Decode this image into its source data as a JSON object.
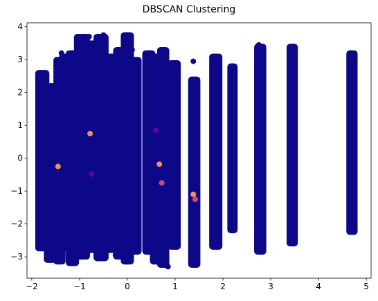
{
  "chart_data": {
    "type": "scatter",
    "title": "DBSCAN Clustering",
    "xlabel": "",
    "ylabel": "",
    "xlim": [
      -2.1,
      5.1
    ],
    "ylim": [
      -3.65,
      4.12
    ],
    "x_ticks": [
      -2,
      -1,
      0,
      1,
      2,
      3,
      4,
      5
    ],
    "y_ticks": [
      -3,
      -2,
      -1,
      0,
      1,
      2,
      3,
      4
    ],
    "grid": false,
    "legend": "none",
    "colors": {
      "main_cluster": "#0d0887",
      "noise_orange": "#f0905a",
      "noise_magenta": "#cc4778",
      "noise_purple": "#5b02a3"
    },
    "columns": [
      {
        "x": -1.78,
        "ymin": -2.75,
        "ymax": 2.6,
        "width": 0.18
      },
      {
        "x": -1.58,
        "ymin": -3.1,
        "ymax": 2.2,
        "width": 0.22
      },
      {
        "x": -1.42,
        "ymin": -3.15,
        "ymax": 3.0,
        "width": 0.14
      },
      {
        "x": -1.3,
        "ymin": -2.75,
        "ymax": 3.1,
        "width": 0.14
      },
      {
        "x": -1.15,
        "ymin": -3.2,
        "ymax": 3.2,
        "width": 0.16
      },
      {
        "x": -0.95,
        "ymin": -3.0,
        "ymax": 3.7,
        "width": 0.22
      },
      {
        "x": -0.75,
        "ymin": -2.8,
        "ymax": 3.5,
        "width": 0.2
      },
      {
        "x": -0.55,
        "ymin": -3.05,
        "ymax": 3.7,
        "width": 0.2
      },
      {
        "x": -0.35,
        "ymin": -2.8,
        "ymax": 3.1,
        "width": 0.18
      },
      {
        "x": -0.15,
        "ymin": -3.0,
        "ymax": 3.3,
        "width": 0.18
      },
      {
        "x": 0.0,
        "ymin": -3.15,
        "ymax": 3.75,
        "width": 0.16
      },
      {
        "x": 0.18,
        "ymin": -2.85,
        "ymax": 3.0,
        "width": 0.12
      },
      {
        "x": 0.45,
        "ymin": -2.85,
        "ymax": 3.2,
        "width": 0.16
      },
      {
        "x": 0.6,
        "ymin": -3.15,
        "ymax": 3.1,
        "width": 0.14
      },
      {
        "x": 0.75,
        "ymin": -3.25,
        "ymax": 3.3,
        "width": 0.14
      },
      {
        "x": 0.98,
        "ymin": -2.7,
        "ymax": 2.9,
        "width": 0.16
      },
      {
        "x": 1.4,
        "ymin": -3.25,
        "ymax": 2.4,
        "width": 0.14
      },
      {
        "x": 1.85,
        "ymin": -2.7,
        "ymax": 3.1,
        "width": 0.16
      },
      {
        "x": 2.2,
        "ymin": -2.2,
        "ymax": 2.8,
        "width": 0.1
      },
      {
        "x": 2.78,
        "ymin": -2.85,
        "ymax": 3.4,
        "width": 0.14
      },
      {
        "x": 3.45,
        "ymin": -2.6,
        "ymax": 3.4,
        "width": 0.12
      },
      {
        "x": 4.7,
        "ymin": -2.25,
        "ymax": 3.2,
        "width": 0.12
      }
    ],
    "series": [
      {
        "points": [
          [
            -1.82,
            2.6
          ],
          [
            -1.75,
            2.2
          ],
          [
            -1.72,
            -2.75
          ],
          [
            -1.6,
            -3.05
          ],
          [
            -1.55,
            2.05
          ],
          [
            -1.45,
            3.0
          ],
          [
            -1.38,
            3.2
          ],
          [
            -1.3,
            3.05
          ],
          [
            -1.22,
            -3.1
          ],
          [
            -1.15,
            -3.2
          ],
          [
            -1.12,
            3.2
          ],
          [
            -1.05,
            3.55
          ],
          [
            -0.98,
            3.6
          ],
          [
            -0.92,
            3.4
          ],
          [
            -0.85,
            -2.95
          ],
          [
            -0.8,
            3.7
          ],
          [
            -0.78,
            -2.7
          ],
          [
            -0.7,
            3.3
          ],
          [
            -0.6,
            3.5
          ],
          [
            -0.55,
            -3.05
          ],
          [
            -0.5,
            3.75
          ],
          [
            -0.45,
            3.4
          ],
          [
            -0.4,
            -2.7
          ],
          [
            -0.35,
            3.1
          ],
          [
            -0.25,
            -2.95
          ],
          [
            -0.2,
            3.05
          ],
          [
            -0.1,
            -2.85
          ],
          [
            -0.05,
            3.3
          ],
          [
            0.0,
            3.75
          ],
          [
            0.0,
            -3.15
          ],
          [
            0.05,
            3.6
          ],
          [
            0.1,
            3.3
          ],
          [
            0.2,
            2.9
          ],
          [
            0.22,
            -2.8
          ],
          [
            0.42,
            -2.85
          ],
          [
            0.45,
            3.2
          ],
          [
            0.55,
            3.05
          ],
          [
            0.6,
            -3.15
          ],
          [
            0.65,
            3.1
          ],
          [
            0.72,
            -3.25
          ],
          [
            0.75,
            3.3
          ],
          [
            0.78,
            3.15
          ],
          [
            0.85,
            -3.3
          ],
          [
            0.95,
            2.9
          ],
          [
            1.0,
            -2.7
          ],
          [
            1.02,
            2.4
          ],
          [
            1.38,
            2.95
          ],
          [
            1.4,
            -3.25
          ],
          [
            1.42,
            2.3
          ],
          [
            1.85,
            3.1
          ],
          [
            1.88,
            -2.7
          ],
          [
            1.9,
            2.95
          ],
          [
            2.2,
            2.8
          ],
          [
            2.22,
            -2.2
          ],
          [
            2.75,
            3.45
          ],
          [
            2.8,
            2.8
          ],
          [
            2.82,
            -2.85
          ],
          [
            3.42,
            3.4
          ],
          [
            3.48,
            -2.6
          ],
          [
            3.45,
            2.95
          ],
          [
            4.68,
            3.2
          ],
          [
            4.72,
            -2.25
          ],
          [
            4.75,
            2.85
          ]
        ],
        "color": "#0d0887"
      },
      {
        "points": [
          [
            -1.45,
            -0.25
          ],
          [
            0.67,
            -0.18
          ],
          [
            1.38,
            -1.1
          ],
          [
            -0.78,
            0.75
          ]
        ],
        "color": "#f0905a"
      },
      {
        "points": [
          [
            0.72,
            -0.75
          ],
          [
            1.42,
            -1.25
          ]
        ],
        "color": "#cc4778"
      },
      {
        "points": [
          [
            -0.75,
            -0.48
          ],
          [
            0.6,
            0.85
          ]
        ],
        "color": "#5b02a3"
      }
    ]
  }
}
